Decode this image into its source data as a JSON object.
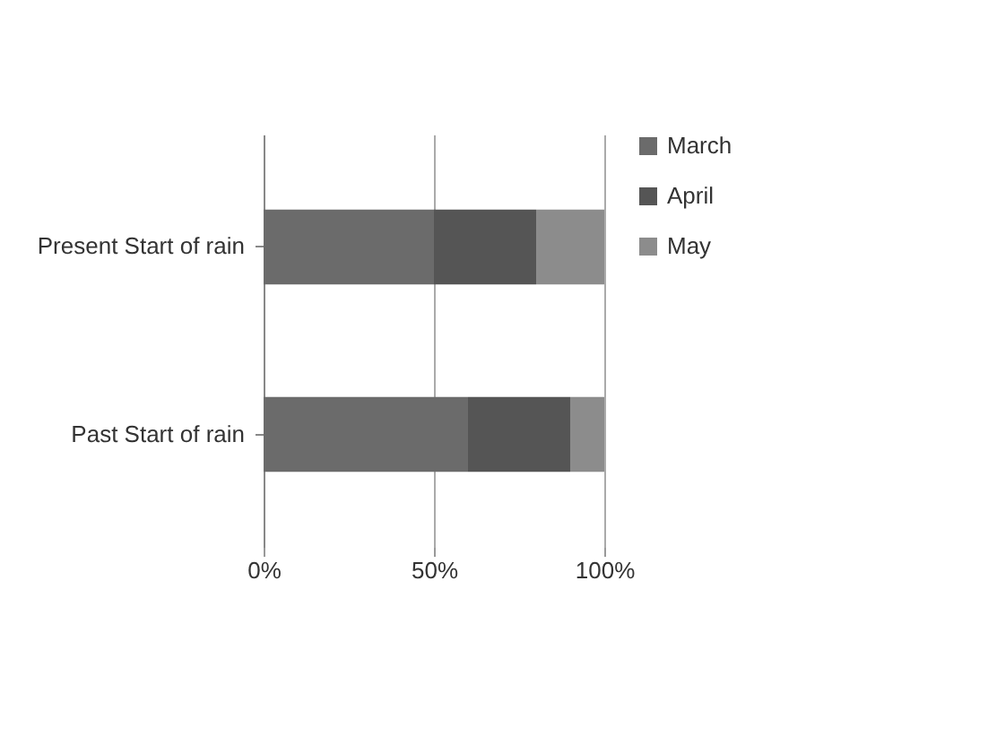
{
  "chart_data": {
    "type": "bar",
    "orientation": "horizontal",
    "stacked": true,
    "categories": [
      "Present Start of rain",
      "Past Start of rain"
    ],
    "series": [
      {
        "name": "March",
        "color": "#6b6b6b",
        "values": [
          0.5,
          0.6
        ]
      },
      {
        "name": "April",
        "color": "#555555",
        "values": [
          0.3,
          0.3
        ]
      },
      {
        "name": "May",
        "color": "#8c8c8c",
        "values": [
          0.2,
          0.1
        ]
      }
    ],
    "xlim": [
      0,
      1
    ],
    "xticks": [
      {
        "value": 0,
        "label": "0%"
      },
      {
        "value": 0.5,
        "label": "50%"
      },
      {
        "value": 1,
        "label": "100%"
      }
    ],
    "grid": "x",
    "legend": "right"
  }
}
